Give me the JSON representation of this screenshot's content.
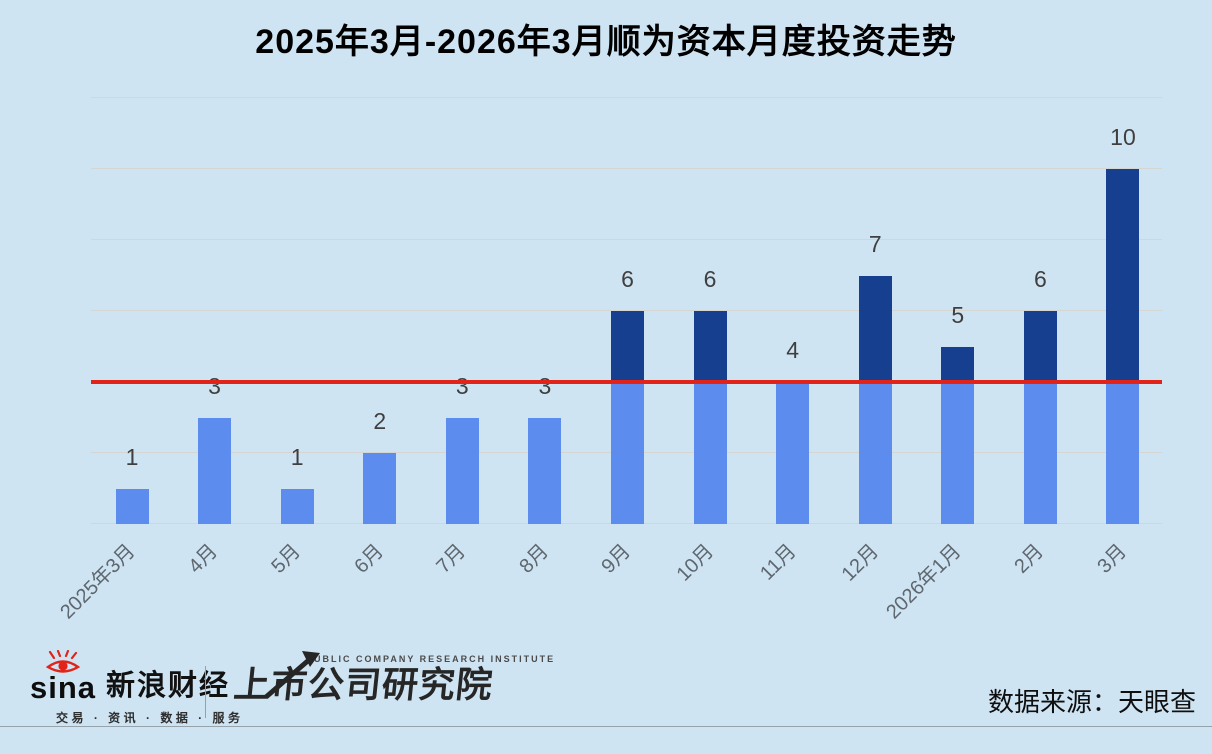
{
  "title": "2025年3月-2026年3月顺为资本月度投资走势",
  "chart_data": {
    "type": "bar",
    "categories": [
      "2025年3月",
      "4月",
      "5月",
      "6月",
      "7月",
      "8月",
      "9月",
      "10月",
      "11月",
      "12月",
      "2026年1月",
      "2月",
      "3月"
    ],
    "values": [
      1,
      3,
      1,
      2,
      3,
      3,
      6,
      6,
      4,
      7,
      5,
      6,
      10
    ],
    "title": "2025年3月-2026年3月顺为资本月度投资走势",
    "xlabel": "",
    "ylabel": "",
    "ylim": [
      0,
      12
    ],
    "grid_interval": 2,
    "grid": true,
    "legend": null,
    "bar_value_labels": true,
    "reference_line": {
      "value": 4,
      "style": "solid"
    },
    "colors": {
      "background": "#cfe4f3",
      "bar_below_line": "#5c8dee",
      "bar_above_line": "#163f8f",
      "gridline": "#d5d5d2",
      "value_label": "#3f3f3f",
      "axis_label": "#5e676e",
      "reference_line": "#e2231a",
      "title": "#000000"
    }
  },
  "footer": {
    "sina": {
      "brand": "sina",
      "name": "新浪财经",
      "tagline": "交易 · 资讯 · 数据 · 服务",
      "logo_icon": "sina-eye-icon"
    },
    "institute": {
      "subtitle": "PUBLIC COMPANY RESEARCH INSTITUTE",
      "name": "上市公司研究院",
      "logo_icon": "rising-arrow-icon"
    },
    "source": "数据来源：天眼查"
  }
}
